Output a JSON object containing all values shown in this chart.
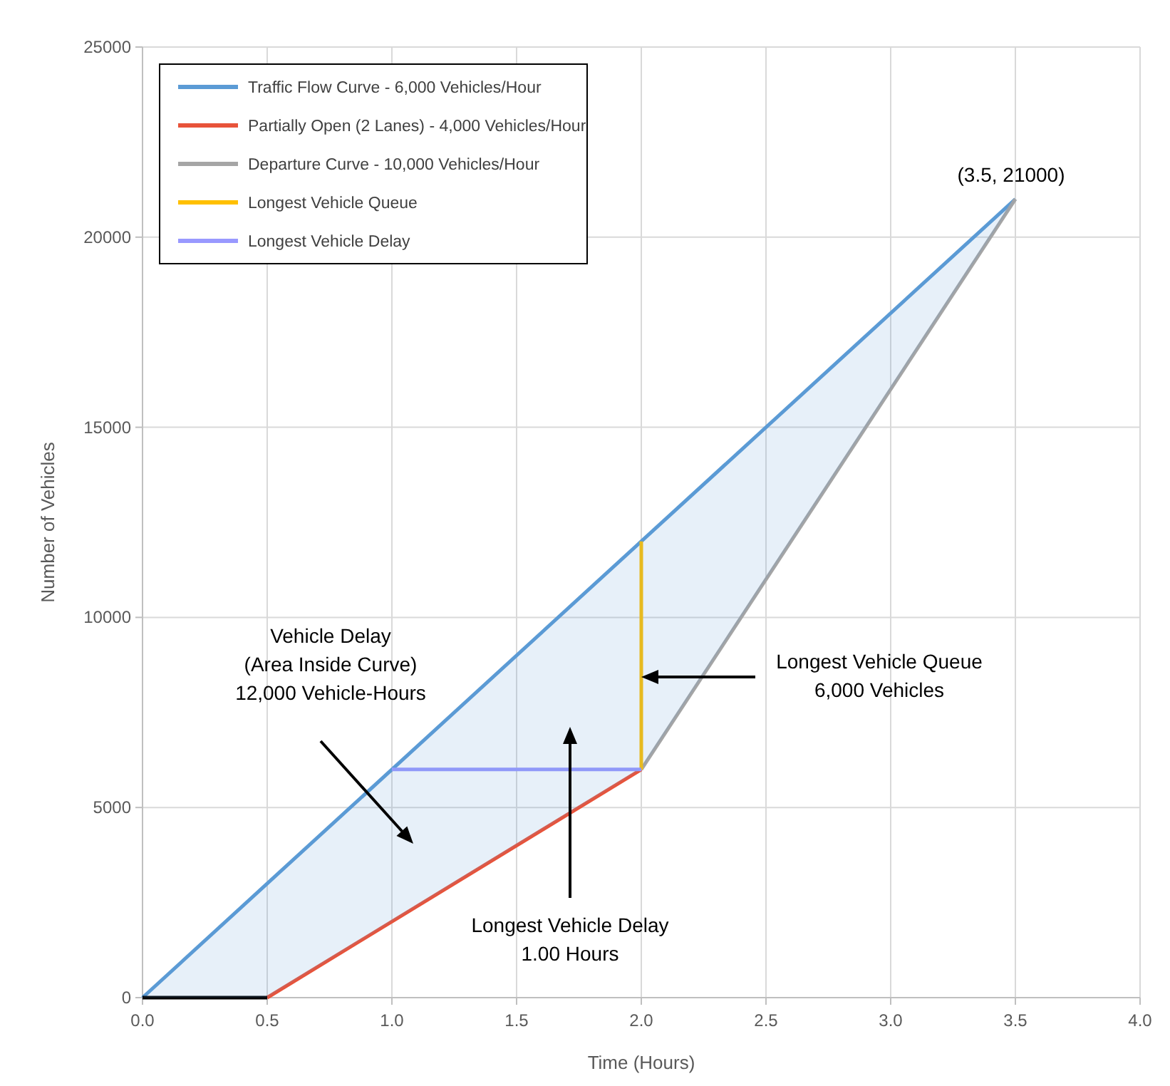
{
  "chart_data": {
    "type": "line",
    "xlabel": "Time (Hours)",
    "ylabel": "Number of Vehicles",
    "xlim": [
      0,
      4
    ],
    "xticks": [
      {
        "value": 0,
        "label": "0.0"
      },
      {
        "value": 0.5,
        "label": "0.5"
      },
      {
        "value": 1,
        "label": "1.0"
      },
      {
        "value": 1.5,
        "label": "1.5"
      },
      {
        "value": 2,
        "label": "2.0"
      },
      {
        "value": 2.5,
        "label": "2.5"
      },
      {
        "value": 3,
        "label": "3.0"
      },
      {
        "value": 3.5,
        "label": "3.5"
      },
      {
        "value": 4,
        "label": "4.0"
      }
    ],
    "ylim": [
      0,
      25000
    ],
    "yticks": [
      0,
      5000,
      10000,
      15000,
      20000,
      25000
    ],
    "grid": true,
    "legend": "top left",
    "marker": "none",
    "line_style": "solid",
    "series": [
      {
        "name": "Traffic Flow Curve - 6,000 Vehicles/Hour",
        "color": "#5b9bd5",
        "x": [
          0,
          0.5,
          2,
          3.5
        ],
        "values": [
          0,
          3000,
          12000,
          21000
        ],
        "lower": [
          0,
          0,
          6000,
          21000
        ],
        "upper": [
          0,
          3000,
          12000,
          21000
        ]
      },
      {
        "name": "Partially Open (2 Lanes) - 4,000 Vehicles/Hour",
        "color": "#e8533a",
        "x": [
          0.5,
          2
        ],
        "values": [
          0,
          6000
        ]
      },
      {
        "name": "Departure Curve - 10,000 Vehicles/Hour",
        "color": "#a5a5a5",
        "x": [
          2,
          3.5
        ],
        "values": [
          6000,
          21000
        ]
      },
      {
        "name": "Longest Vehicle Queue",
        "color": "#ffc000",
        "x": [
          2,
          2
        ],
        "values": [
          6000,
          12000
        ]
      },
      {
        "name": "Longest Vehicle Delay",
        "color": "#9999ff",
        "x": [
          1,
          2
        ],
        "values": [
          6000,
          6000
        ]
      },
      {
        "color": "#000000",
        "x": [
          0,
          0.5
        ],
        "values": [
          0,
          0
        ]
      }
    ],
    "annotations": [
      {
        "text": "(3.5, 21000)",
        "x": 3.5,
        "y": 21000
      },
      "Vehicle Delay\n(Area Inside Curve)\n12,000 Vehicle-Hours",
      "Longest Vehicle Queue\n6,000 Vehicles",
      "Longest Vehicle Delay\n1.00 Hours"
    ]
  }
}
